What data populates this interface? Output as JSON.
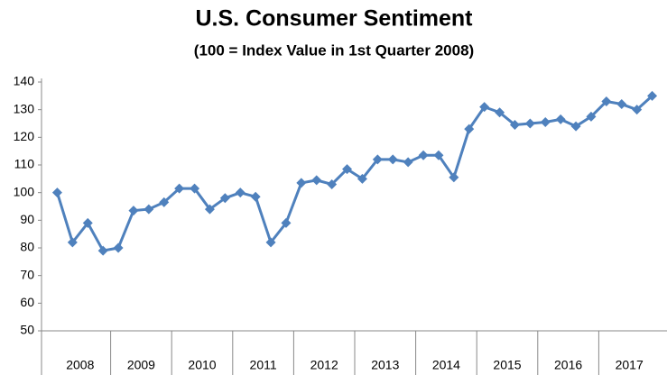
{
  "chart_data": {
    "type": "line",
    "title": "U.S. Consumer Sentiment",
    "subtitle": "(100 = Index Value in 1st Quarter 2008)",
    "groups": [
      "2008",
      "2009",
      "2010",
      "2011",
      "2012",
      "2013",
      "2014",
      "2015",
      "2016",
      "2017"
    ],
    "color": "#4f81bd",
    "values": [
      100,
      82,
      89,
      79,
      80,
      93.5,
      94,
      96.5,
      101.5,
      101.5,
      94,
      98,
      100,
      98.5,
      82,
      89,
      103.5,
      104.5,
      103,
      108.5,
      105,
      112,
      112,
      111,
      113.5,
      113.5,
      105.5,
      123,
      131,
      129,
      124.5,
      125,
      125.5,
      126.5,
      124,
      127.5,
      133,
      132,
      130,
      135
    ],
    "ylim": [
      50,
      140
    ],
    "yticks": [
      50,
      60,
      70,
      80,
      90,
      100,
      110,
      120,
      130,
      140
    ],
    "grid": false
  }
}
